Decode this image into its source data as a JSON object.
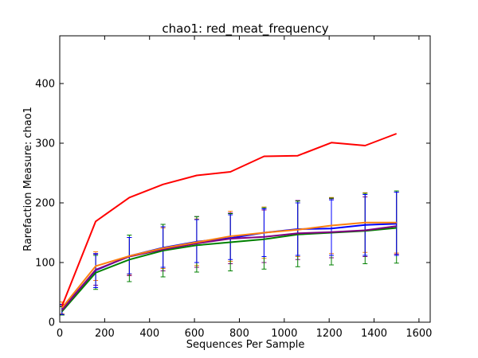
{
  "chart_data": {
    "type": "line",
    "title": "chao1: red_meat_frequency",
    "xlabel": "Sequences Per Sample",
    "ylabel": "Rarefaction Measure: chao1",
    "xlim": [
      0,
      1650
    ],
    "ylim": [
      0,
      480
    ],
    "xticks": [
      0,
      200,
      400,
      600,
      800,
      1000,
      1200,
      1400,
      1600
    ],
    "yticks": [
      0,
      100,
      200,
      300,
      400
    ],
    "grid": false,
    "legend": "none",
    "x": [
      10,
      160,
      310,
      460,
      610,
      760,
      910,
      1060,
      1210,
      1360,
      1500
    ],
    "series": [
      {
        "color": "#ff0000",
        "values": [
          27,
          169,
          209,
          231,
          246,
          252,
          278,
          279,
          301,
          296,
          316
        ]
      },
      {
        "color": "#ff7f0e",
        "values": [
          24,
          94,
          111,
          124,
          134,
          144,
          150,
          155,
          162,
          167,
          167
        ],
        "lower": [
          14,
          70,
          80,
          90,
          95,
          102,
          107,
          110,
          115,
          117,
          116
        ],
        "upper": [
          34,
          118,
          142,
          158,
          173,
          186,
          193,
          200,
          209,
          217,
          218
        ]
      },
      {
        "color": "#800080",
        "values": [
          20,
          88,
          110,
          122,
          132,
          140,
          143,
          149,
          151,
          154,
          161
        ],
        "lower": [
          12,
          62,
          78,
          86,
          92,
          98,
          100,
          105,
          108,
          110,
          114
        ],
        "upper": [
          28,
          114,
          142,
          164,
          177,
          183,
          188,
          204,
          207,
          210,
          218
        ]
      },
      {
        "color": "#008000",
        "values": [
          18,
          83,
          105,
          120,
          129,
          134,
          139,
          147,
          150,
          153,
          158
        ],
        "lower": [
          12,
          55,
          68,
          76,
          84,
          86,
          89,
          93,
          96,
          98,
          99
        ],
        "upper": [
          26,
          112,
          146,
          164,
          177,
          182,
          192,
          203,
          208,
          216,
          220
        ]
      },
      {
        "color": "#0000ff",
        "values": [
          22,
          87,
          111,
          125,
          135,
          141,
          150,
          156,
          157,
          163,
          165
        ],
        "lower": [
          13,
          58,
          81,
          92,
          100,
          105,
          110,
          112,
          112,
          112,
          112
        ],
        "upper": [
          30,
          115,
          142,
          160,
          172,
          180,
          190,
          200,
          205,
          214,
          218
        ]
      }
    ]
  }
}
